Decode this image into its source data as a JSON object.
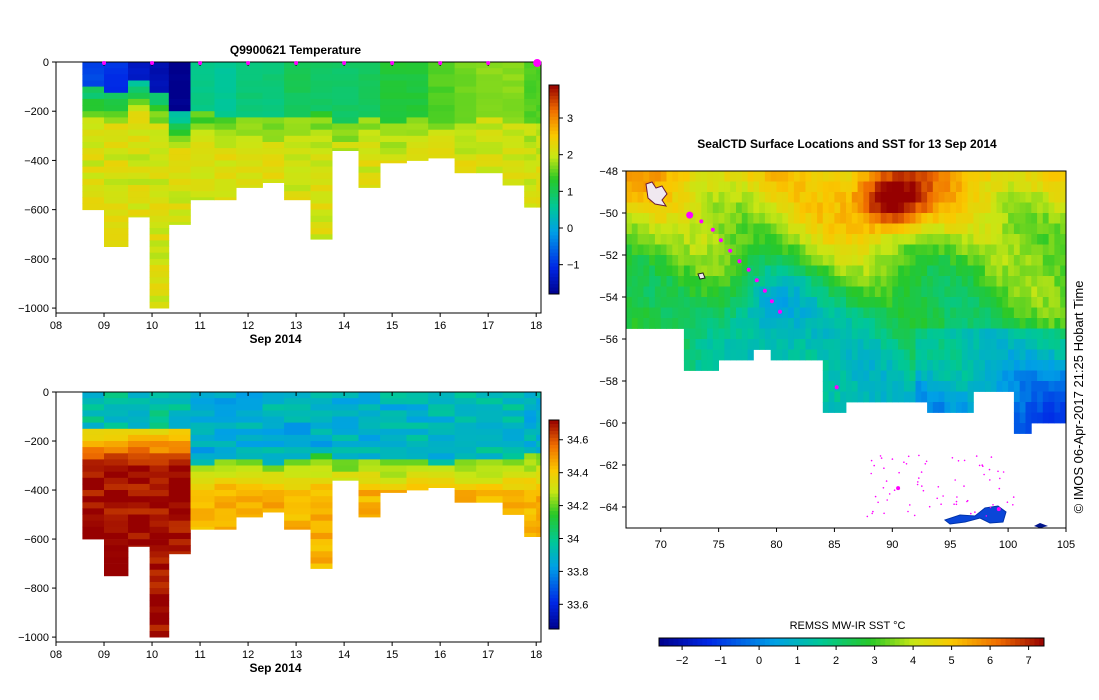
{
  "chart_data": [
    {
      "type": "heatmap",
      "title": "Q9900621  Temperature",
      "xlabel": "Sep 2014",
      "ylabel": "",
      "x_ticks": [
        "08",
        "09",
        "10",
        "11",
        "12",
        "13",
        "14",
        "15",
        "16",
        "17",
        "18"
      ],
      "xlim": [
        8,
        18.1
      ],
      "y_ticks": [
        0,
        -200,
        -400,
        -600,
        -800,
        -1000
      ],
      "ylim": [
        -1020,
        0
      ],
      "profile_times": [
        8.55,
        9.0,
        9.5,
        9.95,
        10.35,
        10.8,
        11.3,
        11.75,
        12.3,
        12.75,
        13.3,
        13.75,
        14.3,
        14.75,
        15.3,
        15.75,
        16.3,
        16.75,
        17.3,
        17.75,
        18.0
      ],
      "profile_depths": [
        600,
        750,
        630,
        1000,
        660,
        560,
        560,
        510,
        490,
        560,
        720,
        360,
        510,
        410,
        400,
        390,
        450,
        450,
        500,
        590,
        590
      ],
      "profile_markers": [
        9.0,
        10.0,
        11.0,
        12.0,
        13.0,
        14.0,
        15.0,
        16.0,
        17.0,
        18.0
      ],
      "colorbar": {
        "ticks": [
          -1,
          0,
          1,
          2,
          3
        ],
        "range": [
          -1.8,
          3.9
        ],
        "palette": "jet"
      },
      "surface_values": [
        -0.8,
        -1.0,
        -1.3,
        -1.5,
        -1.8,
        0.7,
        0.6,
        0.8,
        0.8,
        1.0,
        0.9,
        0.9,
        1.0,
        1.2,
        1.2,
        1.5,
        1.6,
        1.7,
        1.7,
        1.5,
        1.5
      ],
      "mixed_layer_depth": [
        100,
        110,
        60,
        110,
        200,
        200,
        210,
        210,
        220,
        210,
        200,
        230,
        210,
        230,
        210,
        230,
        250,
        220,
        230,
        230,
        230
      ],
      "deep_value": 2.1
    },
    {
      "type": "heatmap",
      "title": "",
      "xlabel": "Sep 2014",
      "ylabel": "",
      "x_ticks": [
        "08",
        "09",
        "10",
        "11",
        "12",
        "13",
        "14",
        "15",
        "16",
        "17",
        "18"
      ],
      "xlim": [
        8,
        18.1
      ],
      "y_ticks": [
        0,
        -200,
        -400,
        -600,
        -800,
        -1000
      ],
      "ylim": [
        -1020,
        0
      ],
      "colorbar": {
        "ticks": [
          33.6,
          33.8,
          34,
          34.2,
          34.4,
          34.6
        ],
        "range": [
          33.45,
          34.72
        ],
        "palette": "jet"
      },
      "surface_values": [
        33.95,
        33.95,
        33.95,
        33.95,
        33.95,
        33.88,
        33.88,
        33.88,
        33.9,
        33.88,
        33.88,
        33.88,
        33.9,
        33.9,
        33.9,
        33.92,
        33.92,
        33.92,
        33.92,
        33.9,
        33.9
      ],
      "mixed_layer_depth": [
        150,
        150,
        150,
        150,
        150,
        280,
        260,
        260,
        280,
        260,
        250,
        270,
        260,
        270,
        260,
        280,
        270,
        270,
        260,
        250,
        250
      ],
      "deep_value": 34.45,
      "deep_value_early": 34.7
    },
    {
      "type": "heatmap",
      "title": "SealCTD Surface Locations and SST for 13 Sep 2014",
      "xlabel": "",
      "ylabel": "",
      "x_ticks": [
        70,
        75,
        80,
        85,
        90,
        95,
        100,
        105
      ],
      "xlim": [
        67,
        105
      ],
      "y_ticks": [
        -48,
        -50,
        -52,
        -54,
        -56,
        -58,
        -60,
        -62,
        -64
      ],
      "ylim": [
        -65,
        -48
      ],
      "track_points": [
        [
          72.5,
          -50.1
        ],
        [
          73.5,
          -50.4
        ],
        [
          74.5,
          -50.8
        ],
        [
          75.2,
          -51.3
        ],
        [
          76.0,
          -51.8
        ],
        [
          76.8,
          -52.3
        ],
        [
          77.6,
          -52.7
        ],
        [
          78.3,
          -53.2
        ],
        [
          79.0,
          -53.7
        ],
        [
          79.6,
          -54.2
        ],
        [
          80.3,
          -54.7
        ],
        [
          85.2,
          -58.3
        ],
        [
          90.5,
          -63.1
        ],
        [
          99.2,
          -64.1
        ]
      ],
      "colorbar": {
        "label": "REMSS MW-IR SST °C",
        "ticks": [
          -2,
          -1,
          0,
          1,
          2,
          3,
          4,
          5,
          6,
          7
        ],
        "range": [
          -2.6,
          7.4
        ],
        "palette": "jet"
      },
      "watermark": "©  IMOS 06-Apr-2017 21:25 Hobart Time"
    }
  ]
}
